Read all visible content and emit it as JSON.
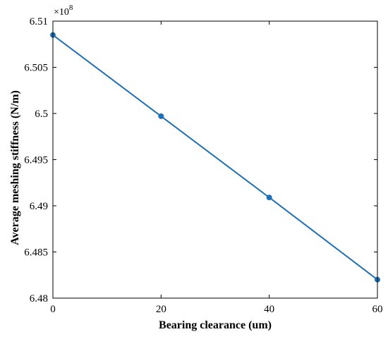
{
  "chart_data": {
    "type": "line",
    "title": "",
    "xlabel": "Bearing clearance  (um)",
    "ylabel": "Average meshing stiffness  (N/m)",
    "y_multiplier": "×10",
    "y_multiplier_exponent": "8",
    "xlim": [
      0,
      60
    ],
    "ylim": [
      6.48,
      6.51
    ],
    "x_ticks": [
      0,
      20,
      40,
      60
    ],
    "x_tick_labels": [
      "0",
      "20",
      "40",
      "60"
    ],
    "y_ticks": [
      6.48,
      6.485,
      6.49,
      6.495,
      6.5,
      6.505,
      6.51
    ],
    "y_tick_labels": [
      "6.48",
      "6.485",
      "6.49",
      "6.495",
      "6.5",
      "6.505",
      "6.51"
    ],
    "grid": false,
    "legend": "none",
    "series": [
      {
        "color": "#1f6fb4",
        "marker": "circle",
        "x": [
          0,
          20,
          40,
          60
        ],
        "y": [
          6.5085,
          6.4997,
          6.4909,
          6.482
        ]
      }
    ]
  }
}
